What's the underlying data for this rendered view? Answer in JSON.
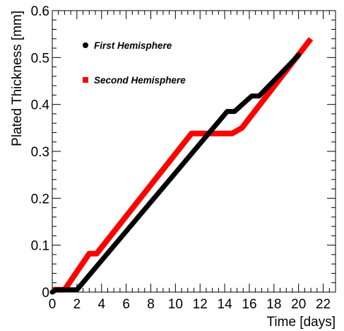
{
  "chart_data": {
    "type": "line",
    "title": "",
    "xlabel": "Time [days]",
    "ylabel": "Plated Thickness [mm]",
    "xlim": [
      0,
      23
    ],
    "ylim": [
      0,
      0.6
    ],
    "grid": false,
    "legend_position": "top-left",
    "x_ticks": [
      0,
      2,
      4,
      6,
      8,
      10,
      12,
      14,
      16,
      18,
      20,
      22
    ],
    "x_tick_labels": [
      "0",
      "2",
      "4",
      "6",
      "8",
      "10",
      "12",
      "14",
      "16",
      "18",
      "20",
      "22"
    ],
    "y_ticks": [
      0,
      0.1,
      0.2,
      0.3,
      0.4,
      0.5,
      0.6
    ],
    "y_tick_labels": [
      "0",
      "0.1",
      "0.2",
      "0.3",
      "0.4",
      "0.5",
      "0.6"
    ],
    "series": [
      {
        "name": "First Hemisphere",
        "color": "#000000",
        "marker": "circle",
        "x": [
          0,
          0.3,
          2.0,
          14.2,
          14.8,
          16.2,
          16.8,
          20.0
        ],
        "y": [
          0,
          0.005,
          0.005,
          0.385,
          0.385,
          0.418,
          0.418,
          0.505
        ]
      },
      {
        "name": "Second Hemisphere",
        "color": "#ff0000",
        "marker": "square",
        "x": [
          0,
          1.0,
          3.0,
          3.6,
          11.3,
          14.6,
          15.4,
          21.0
        ],
        "y": [
          0.005,
          0.005,
          0.082,
          0.082,
          0.338,
          0.338,
          0.35,
          0.54
        ]
      }
    ]
  }
}
